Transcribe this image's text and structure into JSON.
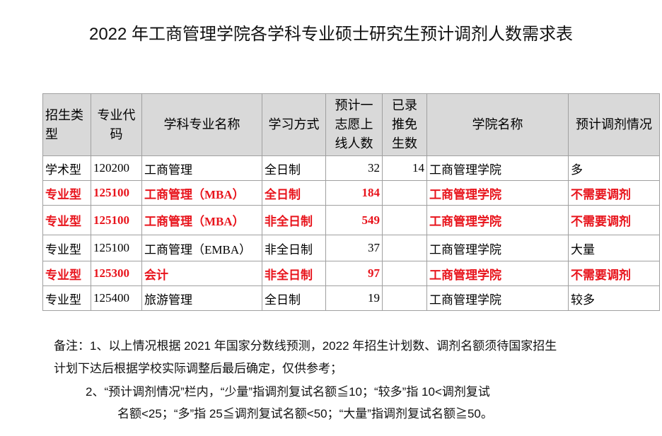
{
  "header": {
    "title": "2022 年工商管理学院各学科专业硕士研究生预计调剂人数需求表"
  },
  "table": {
    "columns": [
      "招生类型",
      "专业代码",
      "学科专业名称",
      "学习方式",
      "预计一志愿上线人数",
      "已录推免生数",
      "学院名称",
      "预计调剂情况"
    ],
    "header_color": "#d9d9d9",
    "highlight_color": "#e8141c",
    "rows": [
      {
        "cells": [
          "学术型",
          "120200",
          "工商管理",
          "全日制",
          "32",
          "14",
          "工商管理学院",
          "多"
        ],
        "highlight": false
      },
      {
        "cells": [
          "专业型",
          "125100",
          "工商管理（MBA）",
          "全日制",
          "184",
          null,
          "工商管理学院",
          "不需要调剂"
        ],
        "highlight": true
      },
      {
        "cells": [
          "专业型",
          "125100",
          "工商管理（MBA）",
          "非全日制",
          "549",
          null,
          "工商管理学院",
          "不需要调剂"
        ],
        "highlight": true
      },
      {
        "cells": [
          "专业型",
          "125100",
          "工商管理（EMBA）",
          "非全日制",
          "37",
          null,
          "工商管理学院",
          "大量"
        ],
        "highlight": false
      },
      {
        "cells": [
          "专业型",
          "125300",
          "会计",
          "非全日制",
          "97",
          null,
          "工商管理学院",
          "不需要调剂"
        ],
        "highlight": true
      },
      {
        "cells": [
          "专业型",
          "125400",
          "旅游管理",
          "全日制",
          "19",
          null,
          "工商管理学院",
          "较多"
        ],
        "highlight": false
      }
    ]
  },
  "notes": {
    "lines": [
      "备注：1、以上情况根据 2021 年国家分数线预测，2022 年招生计划数、调剂名额须待国家招生",
      "计划下达后根据学校实际调整后最后确定，仅供参考；",
      "2、“预计调剂情况”栏内，“少量”指调剂复试名额≦10；“较多”指 10<调剂复试",
      "名额<25；“多”指 25≦调剂复试名额<50；“大量”指调剂复试名额≧50。"
    ]
  }
}
